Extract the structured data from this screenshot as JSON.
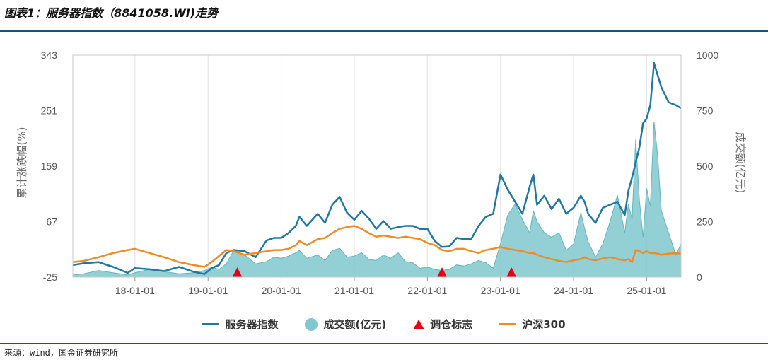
{
  "figure": {
    "title": "图表1：服务器指数（8841058.WI)走势",
    "source": "来源：wind，国金证券研究所"
  },
  "colors": {
    "index": "#1f77a4",
    "volume": "#7fc8cf",
    "marker": "#e60012",
    "hs300": "#f08a24",
    "rule": "#1f4e79"
  },
  "chart_data": {
    "type": "line",
    "title": "",
    "xlabel": "",
    "ylabel": "累计涨跌幅(%)",
    "y2label": "成交额(亿元)",
    "ylim": [
      -25,
      343
    ],
    "y2lim": [
      0,
      1000
    ],
    "y_ticks": [
      -25,
      67,
      159,
      251,
      343
    ],
    "y2_ticks": [
      0,
      250,
      500,
      750,
      1000
    ],
    "x_ticks": [
      "18-01-01",
      "19-01-01",
      "20-01-01",
      "21-01-01",
      "22-01-01",
      "23-01-01",
      "24-01-01",
      "25-01-01"
    ],
    "xlim": [
      2017.15,
      2025.47
    ],
    "legend": "bottom",
    "grid": "vertical",
    "series": [
      {
        "name": "服务器指数",
        "axis": "left",
        "type": "line",
        "x": [
          2017.15,
          2017.3,
          2017.5,
          2017.7,
          2017.9,
          2018.0,
          2018.2,
          2018.4,
          2018.6,
          2018.8,
          2018.95,
          2019.05,
          2019.15,
          2019.25,
          2019.35,
          2019.5,
          2019.65,
          2019.8,
          2019.9,
          2020.0,
          2020.1,
          2020.2,
          2020.25,
          2020.35,
          2020.5,
          2020.6,
          2020.7,
          2020.8,
          2020.9,
          2021.0,
          2021.1,
          2021.2,
          2021.3,
          2021.4,
          2021.5,
          2021.6,
          2021.7,
          2021.8,
          2021.9,
          2022.0,
          2022.1,
          2022.2,
          2022.3,
          2022.4,
          2022.5,
          2022.6,
          2022.7,
          2022.8,
          2022.9,
          2023.0,
          2023.1,
          2023.2,
          2023.3,
          2023.4,
          2023.45,
          2023.5,
          2023.6,
          2023.7,
          2023.8,
          2023.9,
          2024.0,
          2024.1,
          2024.15,
          2024.2,
          2024.3,
          2024.4,
          2024.5,
          2024.6,
          2024.7,
          2024.75,
          2024.8,
          2024.85,
          2024.9,
          2024.95,
          2025.0,
          2025.05,
          2025.1,
          2025.15,
          2025.2,
          2025.3,
          2025.4,
          2025.47
        ],
        "values": [
          -5,
          -2,
          0,
          -8,
          -18,
          -10,
          -12,
          -15,
          -8,
          -16,
          -20,
          -10,
          -5,
          15,
          20,
          18,
          8,
          36,
          40,
          40,
          48,
          60,
          75,
          60,
          80,
          65,
          95,
          108,
          82,
          70,
          85,
          72,
          55,
          68,
          55,
          58,
          60,
          60,
          55,
          55,
          35,
          25,
          26,
          40,
          38,
          38,
          60,
          75,
          80,
          145,
          120,
          100,
          80,
          125,
          145,
          95,
          110,
          88,
          105,
          80,
          90,
          110,
          100,
          80,
          65,
          90,
          95,
          100,
          78,
          118,
          140,
          165,
          190,
          230,
          238,
          260,
          330,
          310,
          290,
          265,
          260,
          255
        ]
      },
      {
        "name": "成交额(亿元)",
        "axis": "right",
        "type": "area",
        "x": [
          2017.15,
          2017.3,
          2017.5,
          2017.7,
          2017.9,
          2018.0,
          2018.2,
          2018.4,
          2018.6,
          2018.8,
          2018.95,
          2019.05,
          2019.15,
          2019.25,
          2019.35,
          2019.5,
          2019.65,
          2019.8,
          2019.9,
          2020.0,
          2020.1,
          2020.2,
          2020.25,
          2020.35,
          2020.5,
          2020.6,
          2020.7,
          2020.8,
          2020.9,
          2021.0,
          2021.1,
          2021.2,
          2021.3,
          2021.4,
          2021.5,
          2021.6,
          2021.7,
          2021.8,
          2021.9,
          2022.0,
          2022.1,
          2022.2,
          2022.3,
          2022.4,
          2022.5,
          2022.6,
          2022.7,
          2022.8,
          2022.9,
          2023.0,
          2023.1,
          2023.2,
          2023.3,
          2023.4,
          2023.45,
          2023.5,
          2023.6,
          2023.7,
          2023.8,
          2023.9,
          2024.0,
          2024.1,
          2024.15,
          2024.2,
          2024.3,
          2024.4,
          2024.5,
          2024.6,
          2024.7,
          2024.75,
          2024.8,
          2024.85,
          2024.9,
          2024.95,
          2025.0,
          2025.05,
          2025.1,
          2025.15,
          2025.2,
          2025.3,
          2025.4,
          2025.47
        ],
        "values": [
          10,
          15,
          30,
          20,
          10,
          20,
          35,
          25,
          15,
          20,
          30,
          45,
          35,
          60,
          120,
          100,
          60,
          70,
          90,
          85,
          95,
          110,
          120,
          85,
          100,
          75,
          120,
          130,
          90,
          95,
          110,
          80,
          75,
          100,
          85,
          110,
          70,
          65,
          40,
          45,
          35,
          30,
          35,
          55,
          50,
          60,
          75,
          65,
          40,
          150,
          280,
          330,
          260,
          200,
          300,
          250,
          200,
          180,
          200,
          120,
          150,
          290,
          220,
          160,
          90,
          150,
          250,
          370,
          200,
          330,
          260,
          620,
          350,
          180,
          400,
          320,
          700,
          550,
          300,
          200,
          100,
          150
        ]
      },
      {
        "name": "沪深300",
        "axis": "left",
        "type": "line",
        "x": [
          2017.15,
          2017.3,
          2017.5,
          2017.7,
          2017.9,
          2018.0,
          2018.2,
          2018.4,
          2018.6,
          2018.8,
          2018.95,
          2019.05,
          2019.15,
          2019.25,
          2019.35,
          2019.5,
          2019.65,
          2019.8,
          2019.9,
          2020.0,
          2020.1,
          2020.2,
          2020.25,
          2020.35,
          2020.5,
          2020.6,
          2020.7,
          2020.8,
          2020.9,
          2021.0,
          2021.1,
          2021.2,
          2021.3,
          2021.4,
          2021.5,
          2021.6,
          2021.7,
          2021.8,
          2021.9,
          2022.0,
          2022.1,
          2022.2,
          2022.3,
          2022.4,
          2022.5,
          2022.6,
          2022.7,
          2022.8,
          2022.9,
          2023.0,
          2023.1,
          2023.2,
          2023.3,
          2023.4,
          2023.45,
          2023.5,
          2023.6,
          2023.7,
          2023.8,
          2023.9,
          2024.0,
          2024.1,
          2024.15,
          2024.2,
          2024.3,
          2024.4,
          2024.5,
          2024.6,
          2024.7,
          2024.75,
          2024.8,
          2024.85,
          2024.9,
          2024.95,
          2025.0,
          2025.05,
          2025.1,
          2025.15,
          2025.2,
          2025.3,
          2025.4,
          2025.47
        ],
        "values": [
          0,
          2,
          8,
          15,
          20,
          22,
          15,
          8,
          0,
          -5,
          -8,
          0,
          10,
          20,
          18,
          12,
          15,
          18,
          20,
          20,
          22,
          28,
          35,
          28,
          38,
          40,
          48,
          55,
          58,
          60,
          55,
          48,
          42,
          44,
          42,
          40,
          42,
          40,
          38,
          32,
          28,
          20,
          18,
          22,
          22,
          18,
          15,
          20,
          22,
          25,
          22,
          20,
          18,
          15,
          15,
          12,
          8,
          5,
          2,
          0,
          3,
          5,
          8,
          5,
          3,
          6,
          8,
          5,
          3,
          5,
          0,
          20,
          18,
          15,
          18,
          15,
          15,
          14,
          12,
          14,
          15,
          14
        ]
      },
      {
        "name": "调仓标志",
        "axis": "left",
        "type": "marker",
        "x": [
          2019.4,
          2022.2,
          2023.15
        ],
        "values": [
          -25,
          -25,
          -25
        ]
      }
    ]
  },
  "legend": [
    {
      "label": "服务器指数",
      "kind": "line",
      "color": "#1f77a4"
    },
    {
      "label": "成交额(亿元)",
      "kind": "dot",
      "color": "#7fc8cf"
    },
    {
      "label": "调仓标志",
      "kind": "triangle",
      "color": "#e60012"
    },
    {
      "label": "沪深300",
      "kind": "line",
      "color": "#f08a24"
    }
  ]
}
